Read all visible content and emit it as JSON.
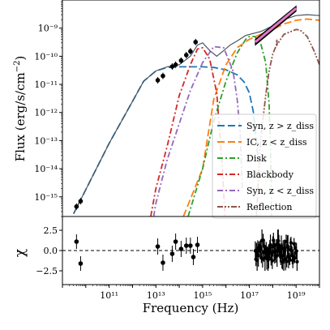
{
  "chart_data": [
    {
      "panel": "top",
      "type": "line",
      "xlabel": "",
      "ylabel": "Flux (erg/s/cm⁻²)",
      "xscale": "log",
      "yscale": "log",
      "xlim": [
        1000000000.0,
        1e+20
      ],
      "ylim": [
        2e-16,
        1e-08
      ],
      "y_ticks": [
        {
          "value": 1e-15,
          "label": "10⁻¹⁵"
        },
        {
          "value": 1e-14,
          "label": "10⁻¹⁴"
        },
        {
          "value": 1e-13,
          "label": "10⁻¹³"
        },
        {
          "value": 1e-12,
          "label": "10⁻¹²"
        },
        {
          "value": 1e-11,
          "label": "10⁻¹¹"
        },
        {
          "value": 1e-10,
          "label": "10⁻¹⁰"
        },
        {
          "value": 1e-09,
          "label": "10⁻⁹"
        }
      ],
      "legend_position": "lower-right",
      "legend": [
        {
          "label": "Syn, z > z_diss",
          "color": "#1f77b4",
          "dash": "9,4"
        },
        {
          "label": "IC, z < z_diss",
          "color": "#ff7f0e",
          "dash": "9,4"
        },
        {
          "label": "Disk",
          "color": "#2ca02c",
          "dash": "7,3,2,3"
        },
        {
          "label": "Blackbody",
          "color": "#d62728",
          "dash": "7,3,2,3"
        },
        {
          "label": "Syn, z < z_diss",
          "color": "#9467bd",
          "dash": "7,3,2,3"
        },
        {
          "label": "Reflection",
          "color": "#8c564b",
          "dash": "7,2,2,2,2,2"
        }
      ],
      "series": [
        {
          "key": "syn_out",
          "color": "#1f77b4",
          "dash": "9,4",
          "points": [
            [
              3000000000.0,
              2.5e-16
            ],
            [
              10000000000.0,
              1.8e-15
            ],
            [
              100000000000.0,
              8e-14
            ],
            [
              1000000000000.0,
              2.5e-12
            ],
            [
              3000000000000.0,
              1.3e-11
            ],
            [
              10000000000000.0,
              3e-11
            ],
            [
              30000000000000.0,
              4e-11
            ],
            [
              100000000000000.0,
              4.2e-11
            ],
            [
              1000000000000000.0,
              4.2e-11
            ],
            [
              3000000000000000.0,
              4e-11
            ],
            [
              1e+16,
              3.3e-11
            ],
            [
              3e+16,
              2.2e-11
            ],
            [
              6e+16,
              1.2e-11
            ],
            [
              1e+17,
              5e-12
            ],
            [
              1.5e+17,
              1e-12
            ],
            [
              2e+17,
              1e-13
            ],
            [
              2.4e+17,
              2e-14
            ]
          ]
        },
        {
          "key": "ic_in",
          "color": "#ff7f0e",
          "dash": "9,4",
          "points": [
            [
              150000000000000.0,
              2e-16
            ],
            [
              1000000000000000.0,
              1e-14
            ],
            [
              3000000000000000.0,
              3e-12
            ],
            [
              1e+16,
              5e-11
            ],
            [
              3e+16,
              2e-10
            ],
            [
              1e+17,
              4e-10
            ],
            [
              3e+17,
              6e-10
            ],
            [
              1e+18,
              9e-10
            ],
            [
              3e+18,
              1.4e-09
            ],
            [
              1e+19,
              1.9e-09
            ],
            [
              3e+19,
              2.1e-09
            ],
            [
              1e+20,
              1.9e-09
            ]
          ]
        },
        {
          "key": "disk",
          "color": "#2ca02c",
          "dash": "7,3,2,3",
          "points": [
            [
              240000000000000.0,
              2e-16
            ],
            [
              1000000000000000.0,
              1e-14
            ],
            [
              3000000000000000.0,
              5e-13
            ],
            [
              1e+16,
              1.3e-11
            ],
            [
              3e+16,
              1.3e-10
            ],
            [
              7e+16,
              4e-10
            ],
            [
              1e+17,
              5e-10
            ],
            [
              1.7e+17,
              5e-10
            ],
            [
              3e+17,
              3e-10
            ],
            [
              5e+17,
              6e-11
            ],
            [
              7e+17,
              2e-12
            ],
            [
              8e+17,
              5e-14
            ],
            [
              9e+17,
              2e-16
            ]
          ]
        },
        {
          "key": "blackbody",
          "color": "#d62728",
          "dash": "7,3,2,3",
          "points": [
            [
              6000000000000.0,
              2e-16
            ],
            [
              10000000000000.0,
              2e-15
            ],
            [
              30000000000000.0,
              6e-14
            ],
            [
              100000000000000.0,
              4e-12
            ],
            [
              300000000000000.0,
              5e-11
            ],
            [
              600000000000000.0,
              1.8e-10
            ],
            [
              1000000000000000.0,
              2e-10
            ],
            [
              2000000000000000.0,
              8e-11
            ],
            [
              4000000000000000.0,
              5e-12
            ],
            [
              7000000000000000.0,
              1e-14
            ],
            [
              9000000000000000.0,
              2e-16
            ]
          ]
        },
        {
          "key": "syn_in",
          "color": "#9467bd",
          "dash": "7,3,2,3",
          "points": [
            [
              8000000000000.0,
              2e-16
            ],
            [
              10000000000000.0,
              6e-16
            ],
            [
              30000000000000.0,
              2e-14
            ],
            [
              100000000000000.0,
              4e-13
            ],
            [
              300000000000000.0,
              6e-12
            ],
            [
              1000000000000000.0,
              6e-11
            ],
            [
              3000000000000000.0,
              2.2e-10
            ],
            [
              8000000000000000.0,
              2e-10
            ],
            [
              2e+16,
              3e-11
            ],
            [
              3e+16,
              3e-12
            ],
            [
              4e+16,
              2e-13
            ],
            [
              5e+16,
              2e-15
            ]
          ]
        },
        {
          "key": "reflection",
          "color": "#8c564b",
          "dash": "7,2,2,2,2,2",
          "points": [
            [
              2e+17,
              2e-16
            ],
            [
              3e+17,
              1e-13
            ],
            [
              5e+17,
              4e-12
            ],
            [
              7e+17,
              3e-11
            ],
            [
              1e+18,
              1.2e-10
            ],
            [
              1.3e+18,
              2e-10
            ],
            [
              1.45e+18,
              2.6e-10
            ],
            [
              1.5e+18,
              4e-10
            ],
            [
              1.55e+18,
              2.6e-10
            ],
            [
              3e+18,
              6e-10
            ],
            [
              1e+19,
              9e-10
            ],
            [
              1.5e+19,
              8.5e-10
            ],
            [
              3e+19,
              5e-10
            ],
            [
              6e+19,
              1.5e-10
            ],
            [
              1e+20,
              5e-11
            ]
          ]
        },
        {
          "key": "total",
          "color": "#4a5560",
          "dash": "",
          "points": [
            [
              3000000000.0,
              2.5e-16
            ],
            [
              10000000000.0,
              1.8e-15
            ],
            [
              100000000000.0,
              8e-14
            ],
            [
              1000000000000.0,
              2.5e-12
            ],
            [
              3000000000000.0,
              1.3e-11
            ],
            [
              10000000000000.0,
              3e-11
            ],
            [
              30000000000000.0,
              4.2e-11
            ],
            [
              100000000000000.0,
              5e-11
            ],
            [
              300000000000000.0,
              1e-10
            ],
            [
              600000000000000.0,
              2.5e-10
            ],
            [
              1000000000000000.0,
              3e-10
            ],
            [
              2000000000000000.0,
              1.6e-10
            ],
            [
              4000000000000000.0,
              1e-10
            ],
            [
              8000000000000000.0,
              1.6e-10
            ],
            [
              1.5e+16,
              2.5e-10
            ],
            [
              3e+16,
              3.5e-10
            ],
            [
              7e+16,
              5.5e-10
            ],
            [
              1.5e+17,
              6.5e-10
            ],
            [
              3e+17,
              7.5e-10
            ],
            [
              1e+18,
              1.2e-09
            ],
            [
              1.5e+18,
              1.6e-09
            ],
            [
              3e+18,
              2e-09
            ],
            [
              1e+19,
              2.8e-09
            ],
            [
              3e+19,
              3e-09
            ],
            [
              1e+20,
              2.8e-09
            ]
          ]
        }
      ],
      "observed_points": [
        [
          4000000000.0,
          4.5e-16
        ],
        [
          6000000000.0,
          7e-16
        ],
        [
          12000000000000.0,
          1.4e-11
        ],
        [
          20000000000000.0,
          2e-11
        ],
        [
          50000000000000.0,
          4.3e-11
        ],
        [
          70000000000000.0,
          5e-11
        ],
        [
          120000000000000.0,
          7e-11
        ],
        [
          200000000000000.0,
          1.1e-10
        ],
        [
          300000000000000.0,
          1.5e-10
        ],
        [
          500000000000000.0,
          3.2e-10
        ]
      ],
      "xray_band": {
        "color": "#e377c2",
        "x_range": [
          1.8e+17,
          1e+19
        ],
        "y_range_start": [
          2.5e-10,
          4e-10
        ],
        "y_range_end": [
          4e-09,
          6e-09
        ]
      }
    },
    {
      "panel": "bottom",
      "type": "scatter",
      "xlabel": "Frequency (Hz)",
      "ylabel": "χ",
      "xscale": "log",
      "xlim": [
        1000000000.0,
        1e+20
      ],
      "ylim": [
        -4.2,
        4.2
      ],
      "x_ticks": [
        {
          "value": 100000000000.0,
          "label": "10¹¹"
        },
        {
          "value": 10000000000000.0,
          "label": "10¹³"
        },
        {
          "value": 1000000000000000.0,
          "label": "10¹⁵"
        },
        {
          "value": 1e+17,
          "label": "10¹⁷"
        },
        {
          "value": 1e+19,
          "label": "10¹⁹"
        }
      ],
      "y_ticks": [
        {
          "value": 2.5,
          "label": "2.5"
        },
        {
          "value": 0.0,
          "label": "0.0"
        },
        {
          "value": -2.5,
          "label": "−2.5"
        }
      ],
      "zero_line": 0,
      "points": [
        [
          4000000000.0,
          1.1,
          0.9
        ],
        [
          6000000000.0,
          -1.6,
          0.9
        ],
        [
          12000000000000.0,
          0.5,
          1.0
        ],
        [
          20000000000000.0,
          -1.5,
          1.0
        ],
        [
          50000000000000.0,
          -0.4,
          1.0
        ],
        [
          70000000000000.0,
          1.1,
          1.0
        ],
        [
          120000000000000.0,
          0.2,
          1.0
        ],
        [
          200000000000000.0,
          0.6,
          1.0
        ],
        [
          300000000000000.0,
          0.6,
          1.0
        ],
        [
          400000000000000.0,
          -0.8,
          1.0
        ],
        [
          600000000000000.0,
          0.7,
          1.0
        ]
      ],
      "xray_residual_range": {
        "x_range": [
          1.8e+17,
          1.1e+19
        ],
        "chi_range": [
          -2.5,
          2.6
        ]
      }
    }
  ]
}
